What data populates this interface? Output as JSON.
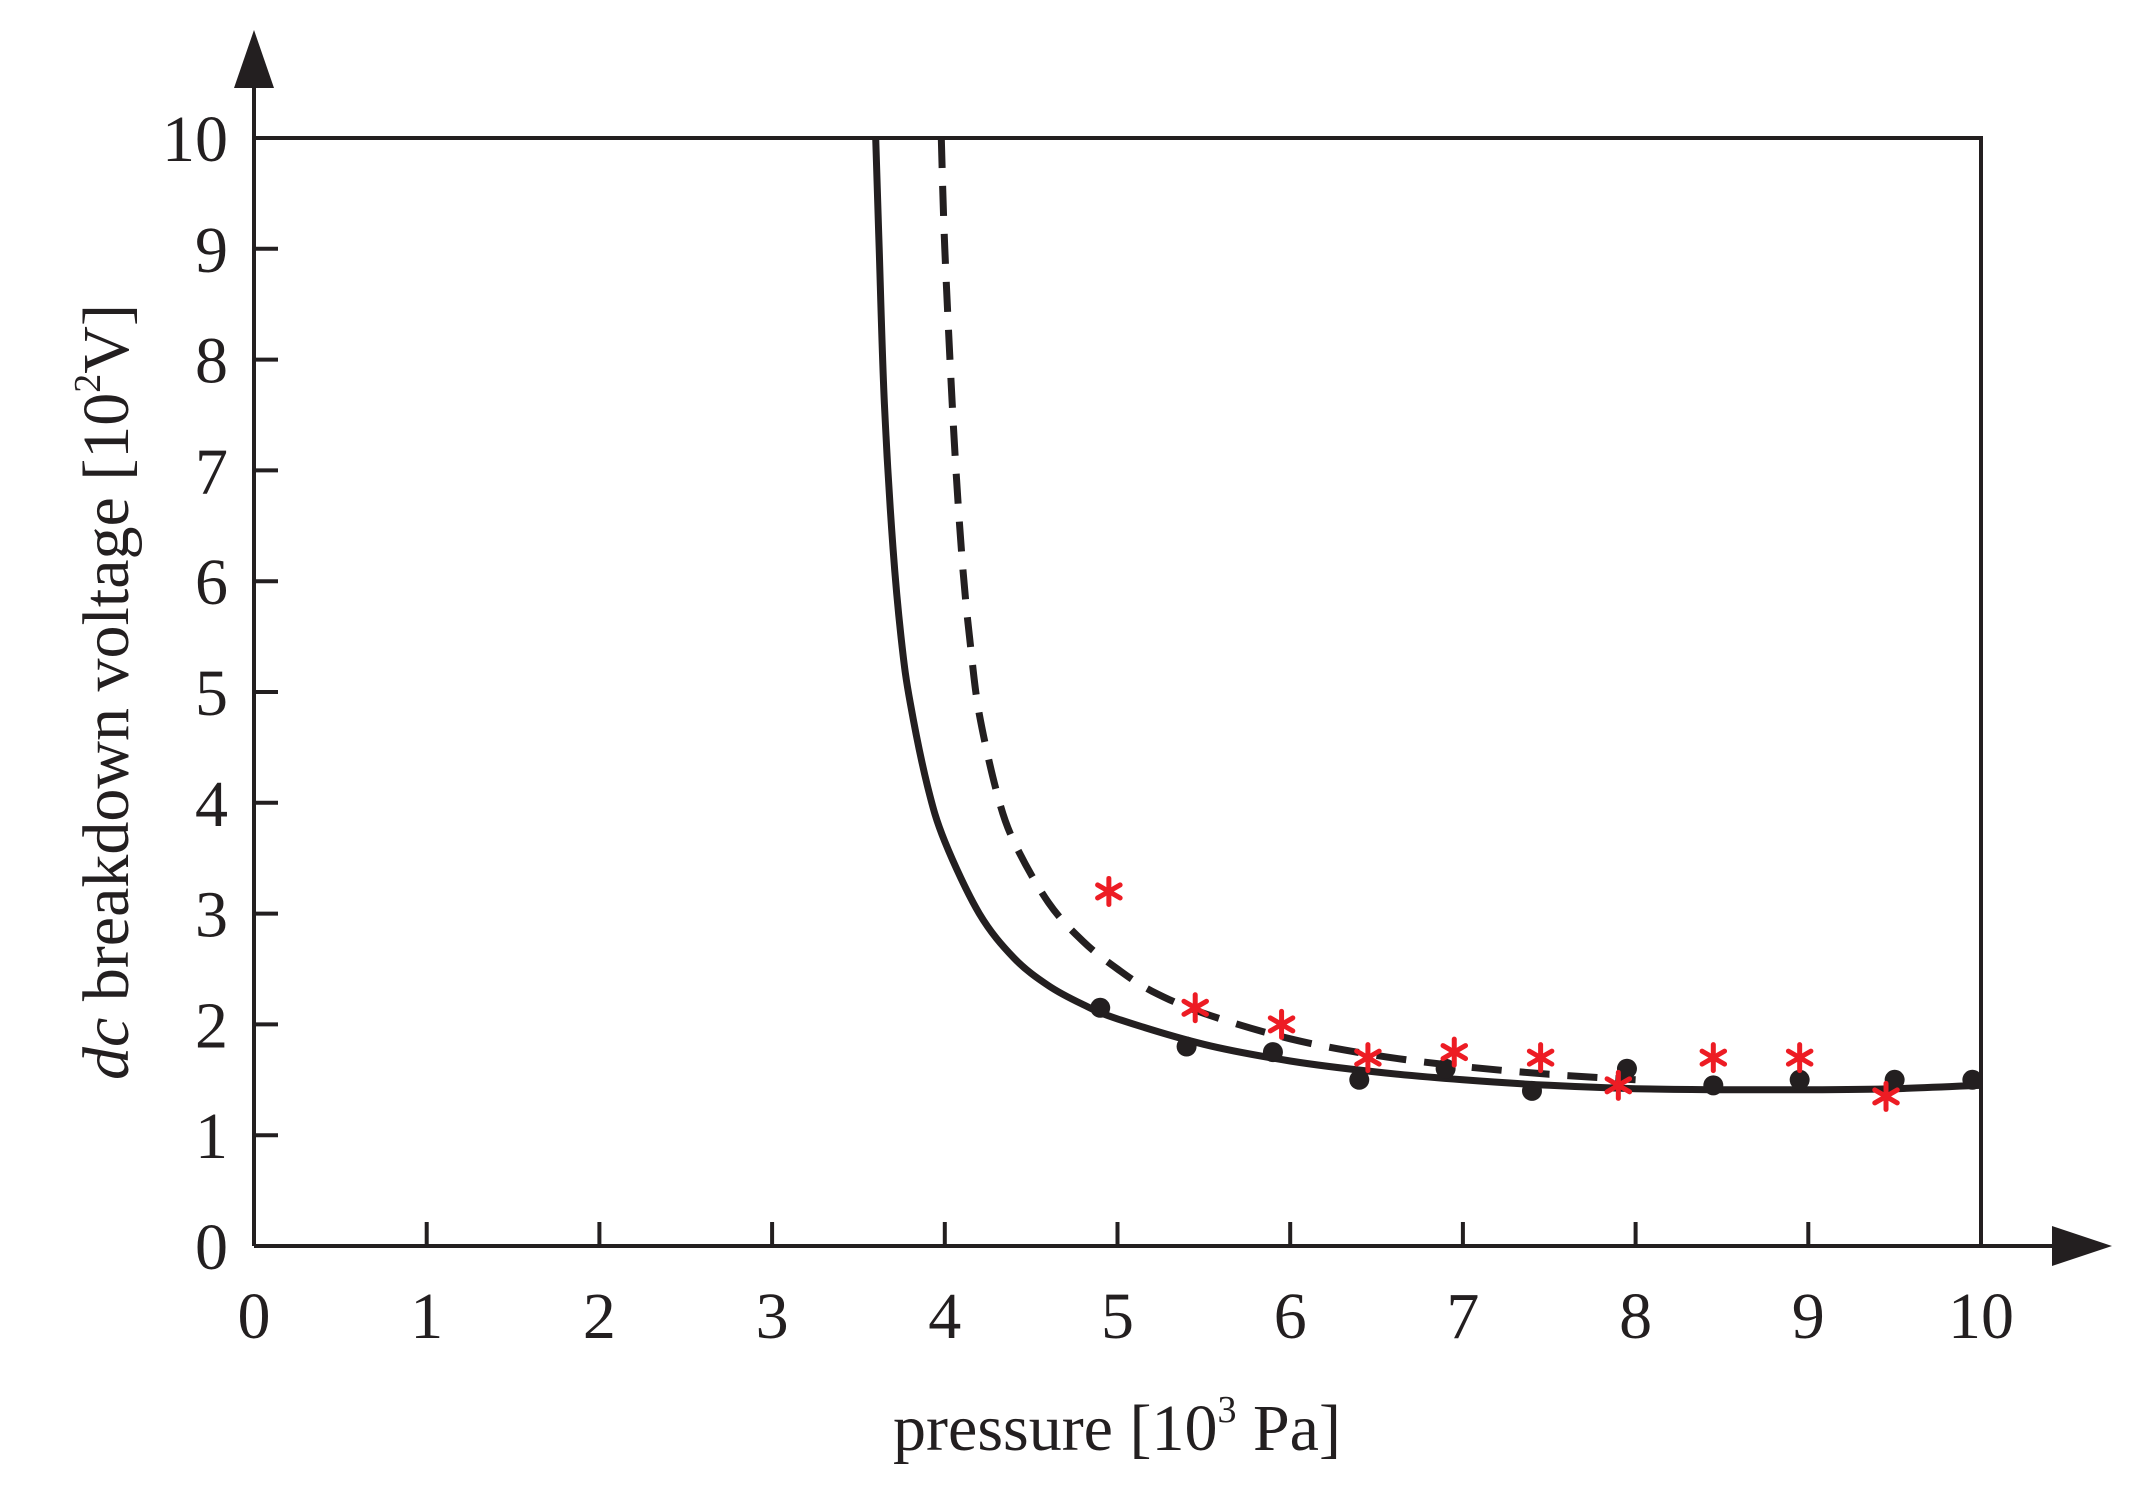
{
  "chart_data": {
    "type": "line",
    "title": "",
    "xlabel": {
      "main": "pressure [10",
      "sup": "3",
      "rest": " Pa]"
    },
    "ylabel": {
      "italic": "dc",
      "main": " breakdown voltage [10",
      "sup": "2",
      "rest": "V]"
    },
    "xlim": [
      0,
      10
    ],
    "ylim": [
      0,
      10
    ],
    "x_ticks": [
      "0",
      "1",
      "2",
      "3",
      "4",
      "5",
      "6",
      "7",
      "8",
      "9",
      "10"
    ],
    "y_ticks": [
      "0",
      "1",
      "2",
      "3",
      "4",
      "5",
      "6",
      "7",
      "8",
      "9",
      "10"
    ],
    "grid": false,
    "colors": {
      "line": "#231f20",
      "marker_red": "#ed1c24",
      "marker_black": "#231f20"
    },
    "series": [
      {
        "name": "solid curve",
        "style": "solid",
        "x": [
          3.6,
          3.62,
          3.65,
          3.7,
          3.75,
          3.8,
          3.9,
          4.0,
          4.2,
          4.4,
          4.6,
          4.8,
          5.0,
          5.5,
          6.0,
          6.5,
          7.0,
          7.5,
          8.0,
          8.5,
          9.0,
          9.5,
          10.0
        ],
        "y": [
          10.0,
          9.0,
          7.6,
          6.3,
          5.45,
          4.9,
          4.15,
          3.65,
          3.0,
          2.6,
          2.35,
          2.18,
          2.05,
          1.82,
          1.67,
          1.57,
          1.5,
          1.45,
          1.42,
          1.41,
          1.41,
          1.42,
          1.45
        ]
      },
      {
        "name": "dashed curve",
        "style": "dashed",
        "x": [
          3.98,
          4.0,
          4.05,
          4.1,
          4.15,
          4.2,
          4.3,
          4.4,
          4.6,
          4.8,
          5.0,
          5.2,
          5.5,
          6.0,
          6.5,
          7.0,
          7.5,
          8.0
        ],
        "y": [
          10.0,
          9.0,
          7.4,
          6.2,
          5.4,
          4.8,
          4.1,
          3.65,
          3.1,
          2.75,
          2.5,
          2.3,
          2.1,
          1.87,
          1.72,
          1.62,
          1.55,
          1.5
        ]
      },
      {
        "name": "measured (dots)",
        "style": "marker-dot",
        "x": [
          4.9,
          5.4,
          5.9,
          6.4,
          6.9,
          7.4,
          7.95,
          8.45,
          8.95,
          9.5,
          9.95
        ],
        "y": [
          2.15,
          1.8,
          1.75,
          1.5,
          1.6,
          1.4,
          1.6,
          1.45,
          1.5,
          1.5,
          1.5
        ]
      },
      {
        "name": "measured (stars)",
        "style": "marker-star",
        "x": [
          4.95,
          5.45,
          5.95,
          6.45,
          6.95,
          7.45,
          7.9,
          8.45,
          8.95,
          9.45
        ],
        "y": [
          3.2,
          2.15,
          2.0,
          1.7,
          1.75,
          1.7,
          1.45,
          1.7,
          1.7,
          1.35
        ]
      }
    ]
  }
}
